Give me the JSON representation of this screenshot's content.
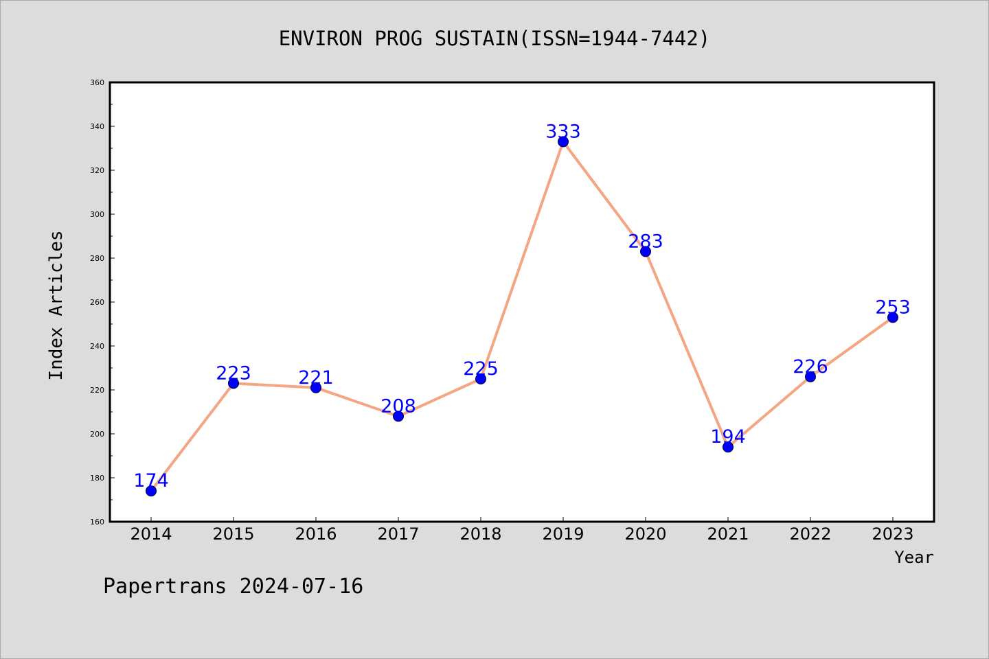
{
  "title": "ENVIRON PROG SUSTAIN(ISSN=1944-7442)",
  "footer": "Papertrans 2024-07-16",
  "colors": {
    "background": "#dcdcdc",
    "plot_area": "#ffffff",
    "line": "#f4a582",
    "marker": "#0000ff",
    "label": "#0000ff"
  },
  "chart_data": {
    "type": "line",
    "title": "ENVIRON PROG SUSTAIN(ISSN=1944-7442)",
    "xlabel": "Year",
    "ylabel": "Index Articles",
    "x": [
      "2014",
      "2015",
      "2016",
      "2017",
      "2018",
      "2019",
      "2020",
      "2021",
      "2022",
      "2023"
    ],
    "values": [
      174,
      223,
      221,
      208,
      225,
      333,
      283,
      194,
      226,
      253
    ],
    "ylim": [
      160,
      360
    ],
    "yticks": [
      160,
      180,
      200,
      220,
      240,
      260,
      280,
      300,
      320,
      340,
      360
    ],
    "grid": false,
    "legend": "none",
    "data_labels": true
  }
}
